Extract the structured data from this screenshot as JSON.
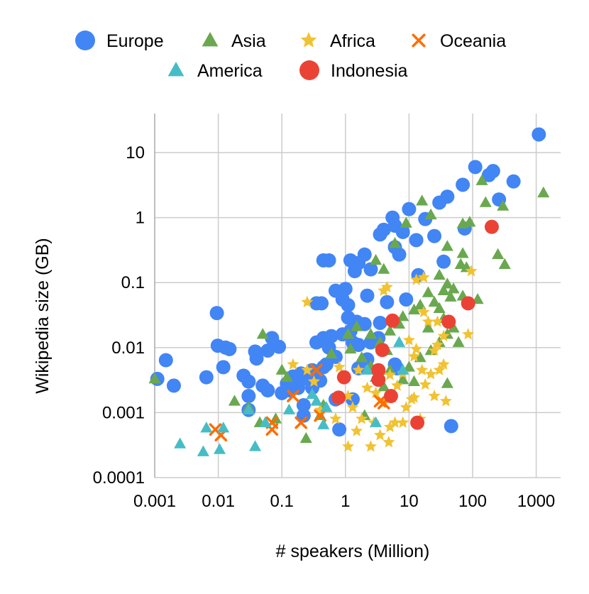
{
  "chart_data": {
    "type": "scatter",
    "title": "",
    "xlabel": "# speakers (Million)",
    "ylabel": "Wikipedia size (GB)",
    "xscale": "log",
    "yscale": "log",
    "xlim": [
      0.001,
      2000
    ],
    "ylim": [
      0.0001,
      40
    ],
    "grid": true,
    "legend_position": "top",
    "x_ticks": [
      {
        "value": 0.001,
        "label": "0.001"
      },
      {
        "value": 0.01,
        "label": "0.01"
      },
      {
        "value": 0.1,
        "label": "0.1"
      },
      {
        "value": 1,
        "label": "1"
      },
      {
        "value": 10,
        "label": "10"
      },
      {
        "value": 100,
        "label": "100"
      },
      {
        "value": 1000,
        "label": "1000"
      }
    ],
    "y_ticks": [
      {
        "value": 0.0001,
        "label": "0.0001"
      },
      {
        "value": 0.001,
        "label": "0.001"
      },
      {
        "value": 0.01,
        "label": "0.01"
      },
      {
        "value": 0.1,
        "label": "0.1"
      },
      {
        "value": 1,
        "label": "1"
      },
      {
        "value": 10,
        "label": "10"
      }
    ],
    "series": [
      {
        "name": "Europe",
        "marker": "circle",
        "color": "#4285F4",
        "points": [
          [
            1100,
            19
          ],
          [
            110,
            6
          ],
          [
            180,
            4.5
          ],
          [
            210,
            5.2
          ],
          [
            440,
            3.6
          ],
          [
            260,
            1.9
          ],
          [
            70,
            3.2
          ],
          [
            40,
            2.1
          ],
          [
            30,
            1.7
          ],
          [
            18,
            0.95
          ],
          [
            10,
            1.35
          ],
          [
            5.5,
            1.0
          ],
          [
            6,
            0.75
          ],
          [
            4,
            0.65
          ],
          [
            8,
            0.6
          ],
          [
            13,
            0.45
          ],
          [
            25,
            0.52
          ],
          [
            35,
            0.21
          ],
          [
            75,
            0.68
          ],
          [
            3.5,
            0.55
          ],
          [
            2,
            0.27
          ],
          [
            1.6,
            0.2
          ],
          [
            1.2,
            0.22
          ],
          [
            2.5,
            0.16
          ],
          [
            1.4,
            0.15
          ],
          [
            0.45,
            0.22
          ],
          [
            0.55,
            0.22
          ],
          [
            6,
            0.35
          ],
          [
            7,
            0.27
          ],
          [
            14,
            0.13
          ],
          [
            1,
            0.08
          ],
          [
            0.7,
            0.075
          ],
          [
            0.35,
            0.048
          ],
          [
            0.42,
            0.048
          ],
          [
            2.2,
            0.063
          ],
          [
            1.1,
            0.045
          ],
          [
            0.9,
            0.055
          ],
          [
            4.5,
            0.05
          ],
          [
            9,
            0.055
          ],
          [
            3.5,
            0.024
          ],
          [
            2,
            0.023
          ],
          [
            1.5,
            0.025
          ],
          [
            1.1,
            0.029
          ],
          [
            1.2,
            0.018
          ],
          [
            0.9,
            0.016
          ],
          [
            0.6,
            0.015
          ],
          [
            0.45,
            0.014
          ],
          [
            0.35,
            0.012
          ],
          [
            0.5,
            0.012
          ],
          [
            0.55,
            0.01
          ],
          [
            1.3,
            0.012
          ],
          [
            1.6,
            0.011
          ],
          [
            2.5,
            0.012
          ],
          [
            3.3,
            0.014
          ],
          [
            0.7,
            0.0072
          ],
          [
            0.5,
            0.0055
          ],
          [
            0.45,
            0.005
          ],
          [
            0.3,
            0.0045
          ],
          [
            0.2,
            0.004
          ],
          [
            0.15,
            0.0036
          ],
          [
            0.25,
            0.0033
          ],
          [
            0.4,
            0.0031
          ],
          [
            0.12,
            0.0028
          ],
          [
            0.18,
            0.0024
          ],
          [
            0.1,
            0.002
          ],
          [
            0.07,
            0.014
          ],
          [
            0.06,
            0.009
          ],
          [
            0.09,
            0.0103
          ],
          [
            0.04,
            0.0068
          ],
          [
            0.038,
            0.0087
          ],
          [
            0.025,
            0.0037
          ],
          [
            0.03,
            0.003
          ],
          [
            0.05,
            0.0026
          ],
          [
            0.06,
            0.0022
          ],
          [
            0.03,
            0.0018
          ],
          [
            0.03,
            0.0011
          ],
          [
            0.0095,
            0.034
          ],
          [
            0.0098,
            0.0107
          ],
          [
            0.013,
            0.01
          ],
          [
            0.015,
            0.0095
          ],
          [
            0.012,
            0.005
          ],
          [
            0.0065,
            0.0035
          ],
          [
            0.0015,
            0.0064
          ],
          [
            0.0011,
            0.0033
          ],
          [
            0.002,
            0.0026
          ],
          [
            0.3,
            0.0024
          ],
          [
            0.22,
            0.0013
          ],
          [
            0.7,
            0.0016
          ],
          [
            1.3,
            0.0016
          ],
          [
            0.22,
            0.0009
          ],
          [
            0.8,
            0.00055
          ],
          [
            46,
            0.00062
          ],
          [
            1.6,
            0.0048
          ],
          [
            2.2,
            0.0066
          ],
          [
            6,
            0.0055
          ],
          [
            6.5,
            0.0048
          ],
          [
            0.2,
            0.0035
          ],
          [
            0.13,
            0.0022
          ]
        ]
      },
      {
        "name": "Asia",
        "marker": "triangle",
        "color": "#6AA84F",
        "points": [
          [
            1300,
            2.4
          ],
          [
            140,
            3.7
          ],
          [
            300,
            1.5
          ],
          [
            160,
            1.7
          ],
          [
            90,
            0.85
          ],
          [
            70,
            0.8
          ],
          [
            16,
            1.8
          ],
          [
            22,
            1.1
          ],
          [
            9,
            0.82
          ],
          [
            6,
            0.4
          ],
          [
            3,
            0.22
          ],
          [
            4,
            0.16
          ],
          [
            40,
            0.36
          ],
          [
            70,
            0.28
          ],
          [
            65,
            0.19
          ],
          [
            80,
            0.17
          ],
          [
            250,
            0.27
          ],
          [
            320,
            0.19
          ],
          [
            30,
            0.13
          ],
          [
            40,
            0.095
          ],
          [
            50,
            0.08
          ],
          [
            35,
            0.075
          ],
          [
            20,
            0.07
          ],
          [
            25,
            0.05
          ],
          [
            15,
            0.045
          ],
          [
            12,
            0.038
          ],
          [
            30,
            0.04
          ],
          [
            45,
            0.06
          ],
          [
            70,
            0.062
          ],
          [
            120,
            0.055
          ],
          [
            8,
            0.03
          ],
          [
            7,
            0.023
          ],
          [
            5,
            0.018
          ],
          [
            35,
            0.028
          ],
          [
            50,
            0.02
          ],
          [
            40,
            0.016
          ],
          [
            30,
            0.012
          ],
          [
            22,
            0.009
          ],
          [
            15,
            0.007
          ],
          [
            10,
            0.005
          ],
          [
            5,
            0.0045
          ],
          [
            3,
            0.0035
          ],
          [
            2.5,
            0.0052
          ],
          [
            1.8,
            0.007
          ],
          [
            1.2,
            0.0095
          ],
          [
            1.1,
            0.016
          ],
          [
            1.5,
            0.021
          ],
          [
            2.5,
            0.016
          ],
          [
            3.5,
            0.012
          ],
          [
            4.5,
            0.009
          ],
          [
            0.6,
            0.008
          ],
          [
            0.1,
            0.0045
          ],
          [
            0.12,
            0.0035
          ],
          [
            0.05,
            0.016
          ],
          [
            0.018,
            0.0015
          ],
          [
            0.03,
            0.0012
          ],
          [
            0.045,
            0.0007
          ],
          [
            0.08,
            0.0008
          ],
          [
            0.24,
            0.0004
          ],
          [
            0.45,
            0.0013
          ],
          [
            0.4,
            0.0009
          ],
          [
            2,
            0.0009
          ],
          [
            4,
            0.0025
          ],
          [
            8,
            0.0032
          ],
          [
            12,
            0.003
          ],
          [
            40,
            0.0028
          ],
          [
            60,
            0.012
          ],
          [
            20,
            0.02
          ],
          [
            0.001,
            0.0033
          ]
        ]
      },
      {
        "name": "Africa",
        "marker": "star",
        "color": "#F1C232",
        "points": [
          [
            95,
            0.15
          ],
          [
            17,
            0.12
          ],
          [
            13,
            0.11
          ],
          [
            4,
            0.075
          ],
          [
            4.5,
            0.085
          ],
          [
            0.25,
            0.05
          ],
          [
            17,
            0.035
          ],
          [
            20,
            0.025
          ],
          [
            28,
            0.025
          ],
          [
            10,
            0.013
          ],
          [
            13,
            0.0095
          ],
          [
            35,
            0.015
          ],
          [
            85,
            0.016
          ],
          [
            28,
            0.011
          ],
          [
            25,
            0.009
          ],
          [
            12,
            0.0073
          ],
          [
            16,
            0.0045
          ],
          [
            30,
            0.0045
          ],
          [
            22,
            0.0039
          ],
          [
            8,
            0.004
          ],
          [
            5,
            0.0038
          ],
          [
            18,
            0.0027
          ],
          [
            6.5,
            0.0026
          ],
          [
            11,
            0.0016
          ],
          [
            25,
            0.0018
          ],
          [
            38,
            0.0015
          ],
          [
            5.5,
            0.0017
          ],
          [
            9,
            0.0012
          ],
          [
            15,
            0.0008
          ],
          [
            8,
            0.0007
          ],
          [
            6,
            0.0007
          ],
          [
            4.8,
            0.00035
          ],
          [
            3.5,
            0.00045
          ],
          [
            1.5,
            0.00052
          ],
          [
            1.1,
            0.0003
          ],
          [
            2.5,
            0.0003
          ],
          [
            1.8,
            0.0008
          ],
          [
            2.8,
            0.0007
          ],
          [
            1.3,
            0.0012
          ],
          [
            1.1,
            0.0018
          ],
          [
            2.2,
            0.0024
          ],
          [
            3,
            0.002
          ],
          [
            4,
            0.0014
          ],
          [
            0.25,
            0.0045
          ],
          [
            0.32,
            0.003
          ],
          [
            0.8,
            0.005
          ],
          [
            0.15,
            0.0055
          ],
          [
            0.4,
            0.0011
          ],
          [
            0.7,
            0.0008
          ],
          [
            1.6,
            0.0045
          ],
          [
            5,
            0.0006
          ],
          [
            12,
            0.0017
          ],
          [
            35,
            0.0055
          ]
        ]
      },
      {
        "name": "Oceania",
        "marker": "x",
        "color": "#FF6D00",
        "points": [
          [
            0.009,
            0.00055
          ],
          [
            0.011,
            0.00045
          ],
          [
            0.07,
            0.0007
          ],
          [
            0.07,
            0.00055
          ],
          [
            0.15,
            0.0018
          ],
          [
            0.2,
            0.0007
          ],
          [
            0.35,
            0.0045
          ],
          [
            0.4,
            0.0009
          ],
          [
            3.5,
            0.0015
          ],
          [
            4,
            0.0014
          ]
        ]
      },
      {
        "name": "America",
        "marker": "triangle",
        "color": "#46BDC6",
        "points": [
          [
            0.0025,
            0.00033
          ],
          [
            0.0058,
            0.00025
          ],
          [
            0.0105,
            0.00027
          ],
          [
            0.038,
            0.0003
          ],
          [
            0.0065,
            0.00058
          ],
          [
            0.012,
            0.00058
          ],
          [
            0.03,
            0.0011
          ],
          [
            0.055,
            0.0007
          ],
          [
            0.13,
            0.0011
          ],
          [
            0.3,
            0.0019
          ],
          [
            0.35,
            0.0015
          ],
          [
            0.45,
            0.00065
          ],
          [
            0.5,
            0.0012
          ],
          [
            3,
            0.0007
          ],
          [
            2.2,
            0.0045
          ],
          [
            7,
            0.012
          ],
          [
            8,
            0.0045
          ]
        ]
      },
      {
        "name": "Indonesia",
        "marker": "circle",
        "color": "#EA4335",
        "points": [
          [
            200,
            0.72
          ],
          [
            85,
            0.048
          ],
          [
            42,
            0.025
          ],
          [
            5.5,
            0.026
          ],
          [
            3.8,
            0.0092
          ],
          [
            0.95,
            0.0035
          ],
          [
            3.3,
            0.0045
          ],
          [
            3.3,
            0.0032
          ],
          [
            0.78,
            0.0017
          ],
          [
            5.2,
            0.0018
          ],
          [
            13.5,
            0.0007
          ]
        ]
      }
    ]
  }
}
